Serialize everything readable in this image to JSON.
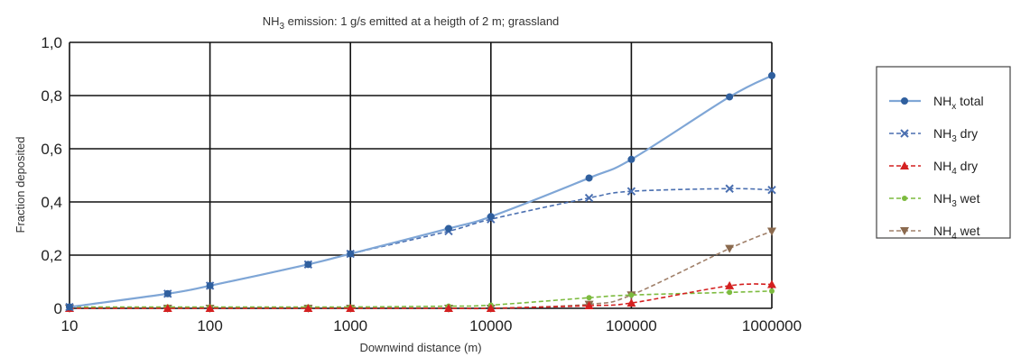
{
  "chart_data": {
    "type": "line",
    "title_parts": [
      "NH",
      "3",
      " emission: 1 g/s emitted at a heigth of 2 m; grassland"
    ],
    "xlabel": "Downwind distance (m)",
    "ylabel": "Fraction deposited",
    "xscale": "log",
    "xlim": [
      10,
      1000000
    ],
    "ylim": [
      0,
      1.0
    ],
    "x_ticks": [
      10,
      100,
      1000,
      10000,
      100000,
      1000000
    ],
    "x_tick_labels": [
      "10",
      "100",
      "1000",
      "10000",
      "100000",
      "1000000"
    ],
    "y_ticks": [
      0,
      0.2,
      0.4,
      0.6,
      0.8,
      1.0
    ],
    "y_tick_labels": [
      "0",
      "0,2",
      "0,4",
      "0,6",
      "0,8",
      "1,0"
    ],
    "grid": true,
    "legend_position": "right",
    "series": [
      {
        "label_main": "NH",
        "label_sub": "x",
        "label_rest": " total",
        "color": "#2f5f9e",
        "line_color": "#7fa6d6",
        "marker": "circle",
        "dash": "solid",
        "x": [
          10,
          50,
          100,
          500,
          1000,
          5000,
          10000,
          50000,
          100000,
          500000,
          1000000
        ],
        "y": [
          0.005,
          0.055,
          0.085,
          0.165,
          0.205,
          0.3,
          0.345,
          0.49,
          0.56,
          0.795,
          0.875
        ]
      },
      {
        "label_main": "NH",
        "label_sub": "3",
        "label_rest": " dry",
        "color": "#4a6fb0",
        "line_color": "#4a6fb0",
        "marker": "x",
        "dash": "dashed",
        "x": [
          10,
          50,
          100,
          500,
          1000,
          5000,
          10000,
          50000,
          100000,
          500000,
          1000000
        ],
        "y": [
          0.005,
          0.055,
          0.085,
          0.165,
          0.205,
          0.29,
          0.335,
          0.415,
          0.44,
          0.45,
          0.445
        ]
      },
      {
        "label_main": "NH",
        "label_sub": "4",
        "label_rest": " dry",
        "color": "#d42020",
        "line_color": "#d42020",
        "marker": "triangle-up",
        "dash": "dashed",
        "x": [
          10,
          50,
          100,
          500,
          1000,
          5000,
          10000,
          50000,
          100000,
          500000,
          1000000
        ],
        "y": [
          0.0,
          0.0,
          0.0,
          0.0,
          0.0,
          0.0,
          0.0,
          0.01,
          0.02,
          0.085,
          0.09
        ]
      },
      {
        "label_main": "NH",
        "label_sub": "3",
        "label_rest": " wet",
        "color": "#7dbb3f",
        "line_color": "#7dbb3f",
        "marker": "dot",
        "dash": "dashed",
        "x": [
          10,
          50,
          100,
          500,
          1000,
          5000,
          10000,
          50000,
          100000,
          500000,
          1000000
        ],
        "y": [
          0.005,
          0.005,
          0.005,
          0.005,
          0.005,
          0.008,
          0.012,
          0.04,
          0.05,
          0.06,
          0.065
        ]
      },
      {
        "label_main": "NH",
        "label_sub": "4",
        "label_rest": " wet",
        "color": "#8b6a4e",
        "line_color": "#a0806a",
        "marker": "triangle-down",
        "dash": "dashed",
        "x": [
          10,
          50,
          100,
          500,
          1000,
          5000,
          10000,
          50000,
          100000,
          500000,
          1000000
        ],
        "y": [
          0.0,
          0.0,
          0.0,
          0.0,
          0.0,
          0.0,
          0.0,
          0.015,
          0.05,
          0.225,
          0.29
        ]
      }
    ]
  }
}
